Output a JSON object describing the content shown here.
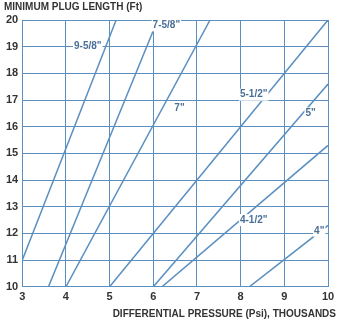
{
  "chart_data": {
    "type": "line",
    "y_label": "MINIMUM PLUG LENGTH (Ft)",
    "x_label": "DIFFERENTIAL PRESSURE (Psi), THOUSANDS",
    "color": "#5a8fc0",
    "series": [
      {
        "x": [
          3,
          5.15
        ],
        "values": [
          11,
          20
        ]
      },
      {
        "x": [
          3.6,
          6.1
        ],
        "values": [
          10,
          20
        ]
      },
      {
        "x": [
          4.0,
          7.3
        ],
        "values": [
          10,
          20
        ]
      },
      {
        "x": [
          5.0,
          10
        ],
        "values": [
          10,
          20
        ]
      },
      {
        "x": [
          6.0,
          10
        ],
        "values": [
          10,
          17.6
        ]
      },
      {
        "x": [
          6.2,
          10
        ],
        "values": [
          10,
          15.3
        ]
      },
      {
        "x": [
          8.2,
          10
        ],
        "values": [
          10,
          12.3
        ]
      }
    ],
    "annotations": [
      {
        "text": "9-5/8\"",
        "x": 4.5,
        "y": 19
      },
      {
        "text": "7-5/8\"",
        "x": 6.3,
        "y": 19.8
      },
      {
        "text": "7\"",
        "x": 6.6,
        "y": 16.7
      },
      {
        "text": "5-1/2\"",
        "x": 8.3,
        "y": 17.2
      },
      {
        "text": "5\"",
        "x": 9.6,
        "y": 16.5
      },
      {
        "text": "4-1/2\"",
        "x": 8.3,
        "y": 12.5
      },
      {
        "text": "4\"",
        "x": 9.8,
        "y": 12.1
      }
    ],
    "xlim": [
      3,
      10
    ],
    "xticks": [
      3,
      4,
      5,
      6,
      7,
      8,
      9,
      10
    ],
    "ylim": [
      10,
      20
    ],
    "yticks": [
      10,
      11,
      12,
      13,
      14,
      15,
      16,
      17,
      18,
      19,
      20
    ],
    "grid": true
  }
}
